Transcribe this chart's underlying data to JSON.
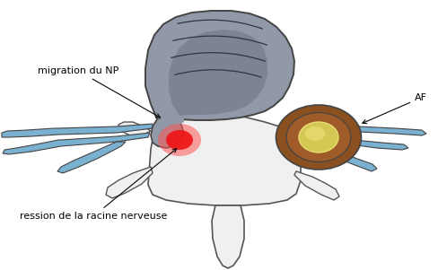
{
  "background_color": "#ffffff",
  "figsize": [
    4.89,
    3.01
  ],
  "dpi": 100,
  "labels": {
    "migration_du_NP": "migration du NP",
    "AF": "AF",
    "compression": "ression de la racine nerveuse"
  },
  "colors": {
    "disc_gray": "#9198a8",
    "disc_gray_dark": "#6b7282",
    "disc_inner": "#787e90",
    "AF_brown_outer": "#8B5020",
    "AF_brown_mid": "#a05c28",
    "AF_yellow": "#d4c855",
    "AF_yellow_inner": "#e8dc70",
    "nerve_blue": "#7ab0d0",
    "nerve_blue_light": "#a0c8e0",
    "vertebra_white": "#f0f0f0",
    "vertebra_gray": "#d8d8d8",
    "vertebra_outline": "#555555",
    "red_spot": "#ee1515",
    "red_spot_glow": "#ff5555",
    "arrow_color": "#111111",
    "outline": "#444444",
    "swirl": "#333344"
  }
}
